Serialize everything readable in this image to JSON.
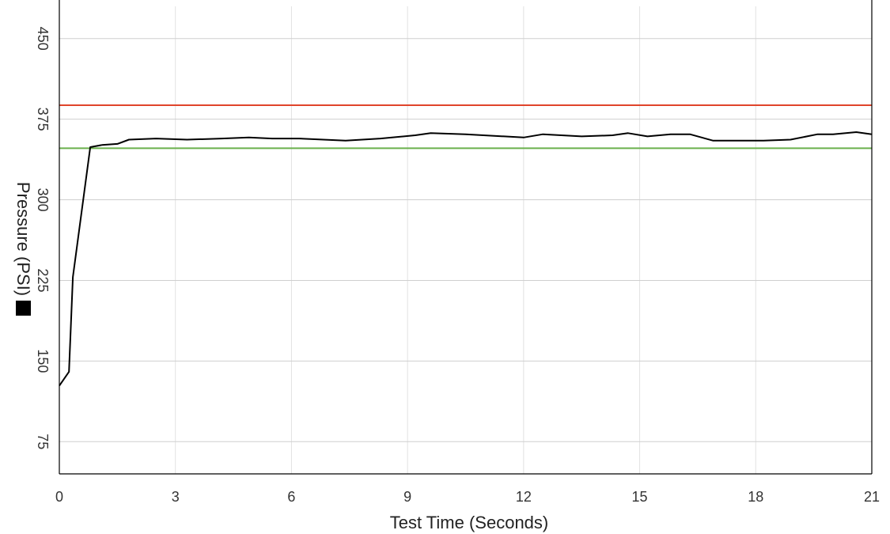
{
  "chart_data": {
    "type": "line",
    "title": "",
    "xlabel": "Test Time (Seconds)",
    "ylabel": "Pressure (PSI)",
    "xlim": [
      0,
      21
    ],
    "ylim": [
      45,
      480
    ],
    "x_ticks": [
      "0",
      "3",
      "6",
      "9",
      "12",
      "15",
      "18",
      "21"
    ],
    "y_ticks": [
      "75",
      "150",
      "225",
      "300",
      "375",
      "450"
    ],
    "x_grid": true,
    "y_grid": true,
    "legend_marker_color": "#000000",
    "reference_lines": [
      {
        "y": 388,
        "color": "#e0442b"
      },
      {
        "y": 348,
        "color": "#6ab04c"
      }
    ],
    "series": [
      {
        "color": "#000000",
        "x": [
          0,
          0.25,
          0.35,
          0.8,
          1.1,
          1.5,
          1.8,
          2.5,
          3.3,
          4.2,
          4.9,
          5.5,
          6.2,
          7.4,
          8.3,
          9.2,
          9.6,
          10.5,
          11.5,
          12.0,
          12.5,
          13.5,
          14.3,
          14.7,
          15.2,
          15.8,
          16.3,
          16.9,
          17.6,
          18.2,
          18.9,
          19.6,
          20.0,
          20.6,
          21.0
        ],
        "y": [
          127,
          140,
          228,
          349,
          351,
          352,
          356,
          357,
          356,
          357,
          358,
          357,
          357,
          355,
          357,
          360,
          362,
          361,
          359,
          358,
          361,
          359,
          360,
          362,
          359,
          361,
          361,
          355,
          355,
          355,
          356,
          361,
          361,
          363,
          361
        ]
      }
    ]
  }
}
